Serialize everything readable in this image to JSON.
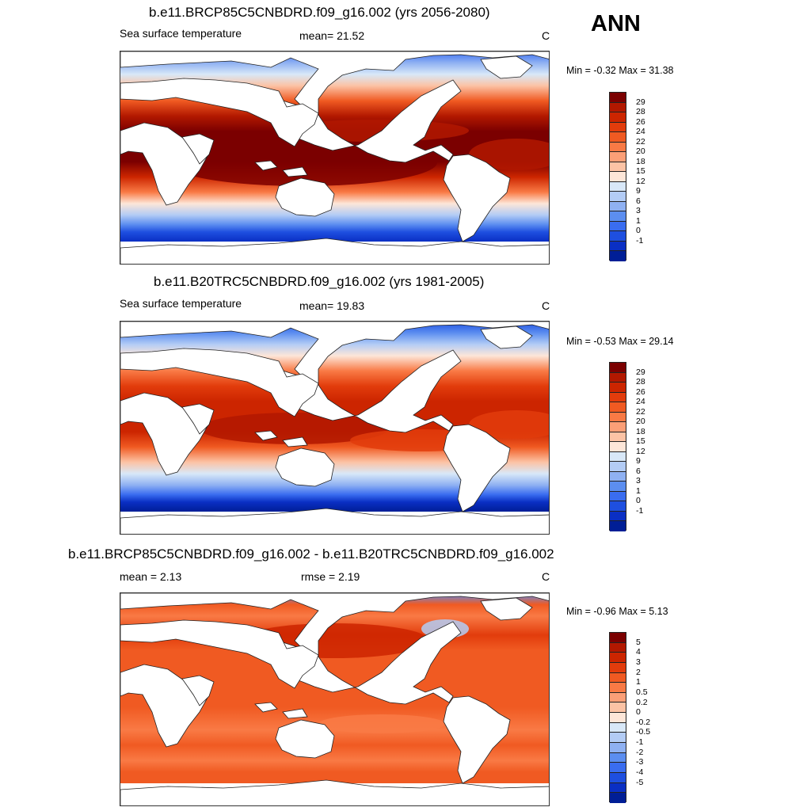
{
  "season": "ANN",
  "colors": {
    "sst": [
      "#7b0000",
      "#b21800",
      "#cc2500",
      "#e23c0c",
      "#f05a22",
      "#f97a45",
      "#fb9f77",
      "#fcc3a5",
      "#fde6d8",
      "#d8e8f8",
      "#b3ccf5",
      "#8fb1f2",
      "#5c8ef0",
      "#3a6df0",
      "#1e4fe0",
      "#0a2fc4",
      "#001e96"
    ],
    "diff": [
      "#7b0000",
      "#b21800",
      "#cc2500",
      "#e23c0c",
      "#f05a22",
      "#f97a45",
      "#fb9f77",
      "#fcc3a5",
      "#fde6d8",
      "#d8e8f8",
      "#b3ccf5",
      "#8fb1f2",
      "#5c8ef0",
      "#3a6df0",
      "#1e4fe0",
      "#0a2fc4",
      "#001e96"
    ]
  },
  "panels": [
    {
      "title": "b.e11.BRCP85C5CNBDRD.f09_g16.002 (yrs 2056-2080)",
      "left_label": "Sea surface temperature",
      "mid_label": "mean=  21.52",
      "units": "C",
      "minmax": "Min =  -0.32 Max =  31.38",
      "colorbar_labels": [
        "29",
        "28",
        "26",
        "24",
        "22",
        "20",
        "18",
        "15",
        "12",
        "9",
        "6",
        "3",
        "1",
        "0",
        "-1"
      ],
      "palette": "future"
    },
    {
      "title": "b.e11.B20TRC5CNBDRD.f09_g16.002 (yrs 1981-2005)",
      "left_label": "Sea surface temperature",
      "mid_label": "mean=  19.83",
      "units": "C",
      "minmax": "Min =  -0.53 Max =  29.14",
      "colorbar_labels": [
        "29",
        "28",
        "26",
        "24",
        "22",
        "20",
        "18",
        "15",
        "12",
        "9",
        "6",
        "3",
        "1",
        "0",
        "-1"
      ],
      "palette": "past"
    },
    {
      "title": "b.e11.BRCP85C5CNBDRD.f09_g16.002 - b.e11.B20TRC5CNBDRD.f09_g16.002",
      "left_label": "mean =   2.13",
      "mid_label": "rmse =   2.19",
      "units": "C",
      "minmax": "Min =  -0.96 Max =   5.13",
      "colorbar_labels": [
        "5",
        "4",
        "3",
        "2",
        "1",
        "0.5",
        "0.2",
        "0",
        "-0.2",
        "-0.5",
        "-1",
        "-2",
        "-3",
        "-4",
        "-5"
      ],
      "palette": "diff"
    }
  ]
}
